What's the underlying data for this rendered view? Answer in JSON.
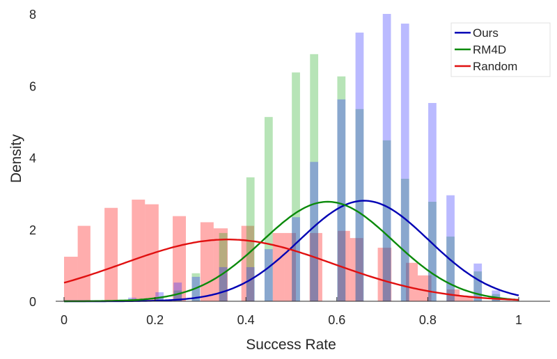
{
  "chart_data": {
    "type": "bar",
    "title": "",
    "xlabel": "Success Rate",
    "ylabel": "Density",
    "xlim": [
      0,
      1
    ],
    "ylim": [
      0,
      8
    ],
    "xticks": [
      "0",
      "0.2",
      "0.4",
      "0.6",
      "0.8",
      "1"
    ],
    "xtick_values": [
      0,
      0.2,
      0.4,
      0.6,
      0.8,
      1
    ],
    "yticks": [
      "0",
      "2",
      "4",
      "6",
      "8"
    ],
    "ytick_values": [
      0,
      2,
      4,
      6,
      8
    ],
    "grid": false,
    "legend_position": "top-right",
    "colors": {
      "Ours": "#0000b4",
      "RM4D": "#0a8a0a",
      "Random": "#e01010"
    },
    "series": [
      {
        "name": "Ours",
        "histogram": {
          "bin_width": 0.018,
          "centers": [
            0.15,
            0.21,
            0.25,
            0.29,
            0.35,
            0.41,
            0.45,
            0.51,
            0.55,
            0.61,
            0.65,
            0.71,
            0.75,
            0.81,
            0.85,
            0.91,
            0.95
          ],
          "values": [
            0.1,
            0.25,
            0.52,
            0.68,
            0.95,
            0.95,
            1.45,
            2.34,
            3.88,
            5.62,
            7.48,
            8.0,
            7.73,
            5.52,
            2.95,
            1.05,
            0.3
          ]
        },
        "fit": {
          "distribution": "normal",
          "mean": 0.66,
          "std": 0.1425
        }
      },
      {
        "name": "RM4D",
        "histogram": {
          "bin_width": 0.018,
          "centers": [
            0.21,
            0.25,
            0.29,
            0.35,
            0.41,
            0.45,
            0.51,
            0.55,
            0.61,
            0.65,
            0.71,
            0.75,
            0.81,
            0.85,
            0.91,
            0.95
          ],
          "values": [
            0.1,
            0.3,
            0.78,
            1.9,
            3.45,
            5.13,
            6.37,
            6.88,
            6.26,
            5.35,
            4.48,
            3.41,
            2.77,
            1.8,
            0.83,
            0.2
          ]
        },
        "fit": {
          "distribution": "normal",
          "mean": 0.58,
          "std": 0.144
        }
      },
      {
        "name": "Random",
        "histogram": {
          "bin_edges": [
            [
              0,
              0.03
            ],
            [
              0.03,
              0.058
            ],
            [
              0.089,
              0.118
            ],
            [
              0.149,
              0.178
            ],
            [
              0.178,
              0.208
            ],
            [
              0.239,
              0.268
            ],
            [
              0.3,
              0.329
            ],
            [
              0.329,
              0.36
            ],
            [
              0.39,
              0.418
            ],
            [
              0.459,
              0.484
            ],
            [
              0.484,
              0.51
            ],
            [
              0.54,
              0.568
            ],
            [
              0.602,
              0.629
            ],
            [
              0.629,
              0.658
            ],
            [
              0.69,
              0.72
            ],
            [
              0.752,
              0.778
            ],
            [
              0.778,
              0.808
            ],
            [
              0.842,
              0.87
            ],
            [
              0.87,
              0.9
            ]
          ],
          "values": [
            1.24,
            2.1,
            2.6,
            2.83,
            2.7,
            2.37,
            2.2,
            2.03,
            2.1,
            1.9,
            1.9,
            1.9,
            1.96,
            1.76,
            1.49,
            1.07,
            0.72,
            0.33,
            0.15
          ]
        },
        "fit": {
          "distribution": "normal",
          "mean": 0.36,
          "std": 0.232
        }
      }
    ]
  }
}
